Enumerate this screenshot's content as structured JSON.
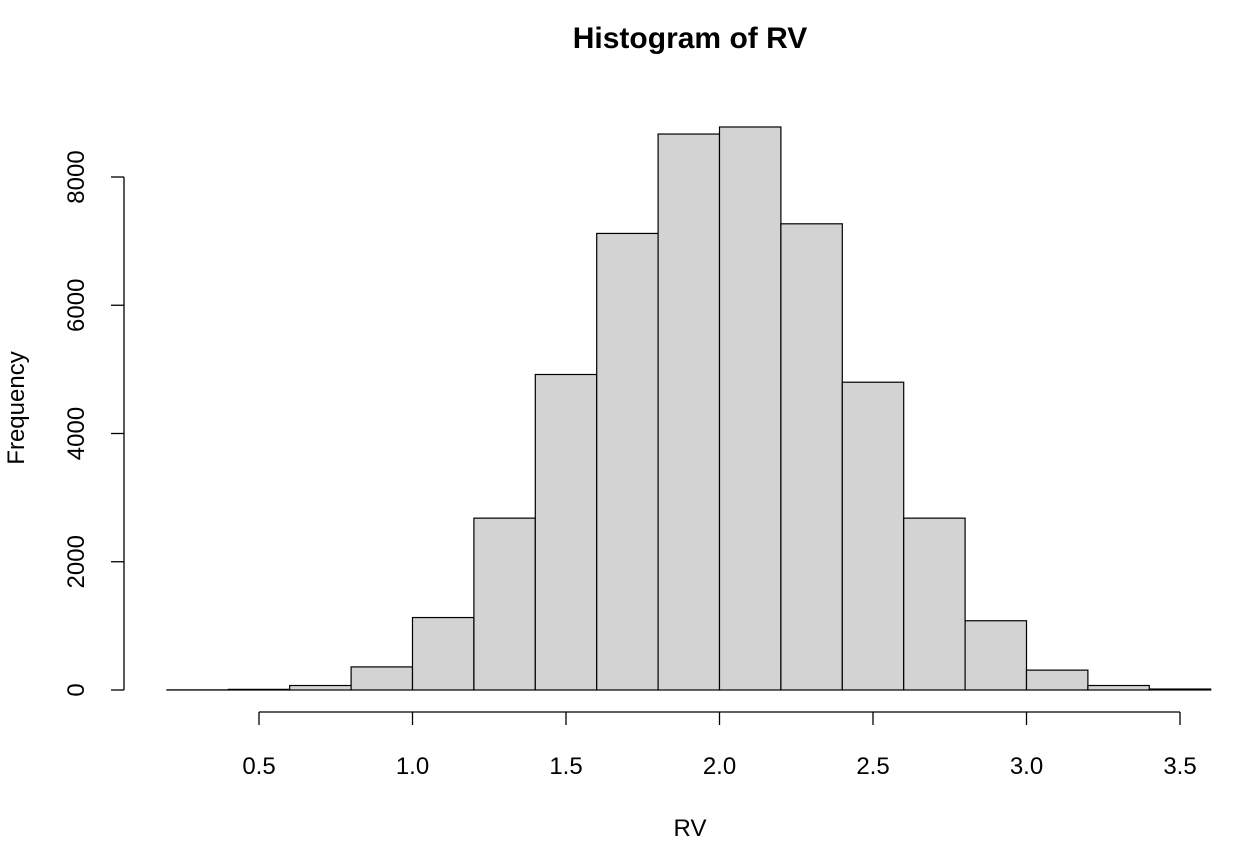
{
  "chart_data": {
    "type": "bar",
    "title": "Histogram of RV",
    "xlabel": "RV",
    "ylabel": "Frequency",
    "bar_color": "#d3d3d3",
    "border_color": "#000000",
    "xlim": [
      0.2,
      3.6
    ],
    "ylim": [
      0,
      9000
    ],
    "x_ticks": [
      "0.5",
      "1.0",
      "1.5",
      "2.0",
      "2.5",
      "3.0",
      "3.5"
    ],
    "y_ticks": [
      "0",
      "2000",
      "4000",
      "6000",
      "8000"
    ],
    "bins": [
      {
        "x0": 0.2,
        "x1": 0.4,
        "count": 2
      },
      {
        "x0": 0.4,
        "x1": 0.6,
        "count": 10
      },
      {
        "x0": 0.6,
        "x1": 0.8,
        "count": 70
      },
      {
        "x0": 0.8,
        "x1": 1.0,
        "count": 360
      },
      {
        "x0": 1.0,
        "x1": 1.2,
        "count": 1130
      },
      {
        "x0": 1.2,
        "x1": 1.4,
        "count": 2680
      },
      {
        "x0": 1.4,
        "x1": 1.6,
        "count": 4920
      },
      {
        "x0": 1.6,
        "x1": 1.8,
        "count": 7120
      },
      {
        "x0": 1.8,
        "x1": 2.0,
        "count": 8670
      },
      {
        "x0": 2.0,
        "x1": 2.2,
        "count": 8780
      },
      {
        "x0": 2.2,
        "x1": 2.4,
        "count": 7270
      },
      {
        "x0": 2.4,
        "x1": 2.6,
        "count": 4800
      },
      {
        "x0": 2.6,
        "x1": 2.8,
        "count": 2680
      },
      {
        "x0": 2.8,
        "x1": 3.0,
        "count": 1080
      },
      {
        "x0": 3.0,
        "x1": 3.2,
        "count": 310
      },
      {
        "x0": 3.2,
        "x1": 3.4,
        "count": 70
      },
      {
        "x0": 3.4,
        "x1": 3.6,
        "count": 15
      }
    ]
  }
}
